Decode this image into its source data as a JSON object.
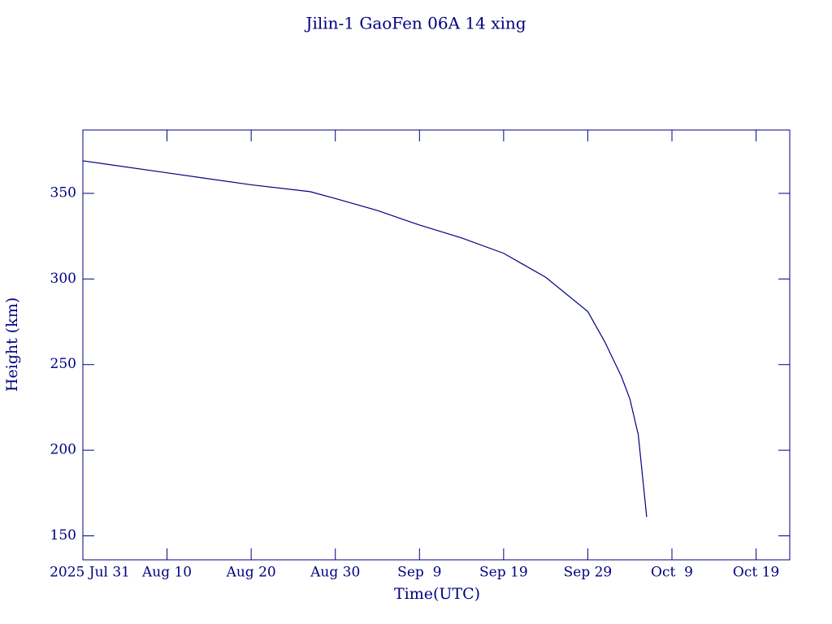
{
  "chart_data": {
    "type": "line",
    "title": "Jilin-1 GaoFen 06A 14 xing",
    "x_label": "Time(UTC)",
    "y_label": "Height (km)",
    "x": [
      "2025-07-31",
      "2025-08-10",
      "2025-08-20",
      "2025-08-27",
      "2025-08-30",
      "2025-09-04",
      "2025-09-09",
      "2025-09-14",
      "2025-09-19",
      "2025-09-24",
      "2025-09-29",
      "2025-10-01",
      "2025-10-03",
      "2025-10-04",
      "2025-10-05",
      "2025-10-06"
    ],
    "series": [
      {
        "name": "Height",
        "color": "#000080",
        "values": [
          369,
          362,
          355,
          351,
          347,
          340,
          331.5,
          324,
          315,
          301,
          281,
          263.5,
          243,
          230,
          209,
          161
        ]
      }
    ],
    "xlim": [
      "2025-07-31",
      "2025-10-23"
    ],
    "xticks": [
      {
        "value": "2025-07-31",
        "label": "2025 Jul 31"
      },
      {
        "value": "2025-08-10",
        "label": "Aug 10"
      },
      {
        "value": "2025-08-20",
        "label": "Aug 20"
      },
      {
        "value": "2025-08-30",
        "label": "Aug 30"
      },
      {
        "value": "2025-09-09",
        "label": "Sep  9"
      },
      {
        "value": "2025-09-19",
        "label": "Sep 19"
      },
      {
        "value": "2025-09-29",
        "label": "Sep 29"
      },
      {
        "value": "2025-10-09",
        "label": "Oct  9"
      },
      {
        "value": "2025-10-19",
        "label": "Oct 19"
      }
    ],
    "ylim": [
      136,
      387
    ],
    "yticks": [
      150,
      200,
      250,
      300,
      350
    ]
  }
}
